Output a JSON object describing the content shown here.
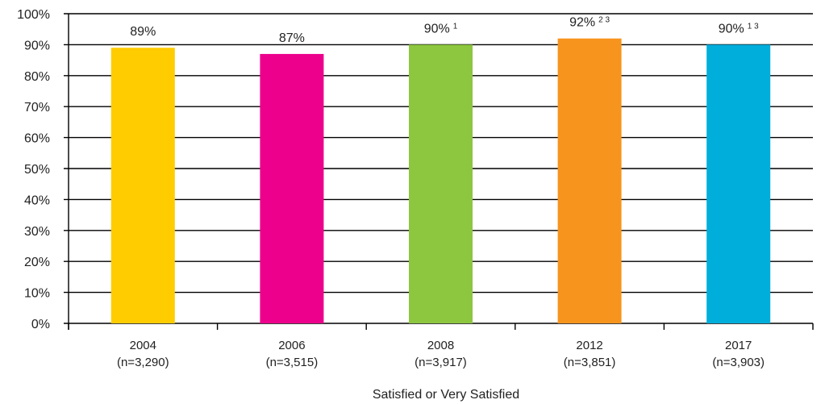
{
  "chart_data": {
    "type": "bar",
    "title": "",
    "xlabel": "Satisfied or Very Satisfied",
    "ylabel": "",
    "ylim": [
      0,
      100
    ],
    "y_tick_values": [
      0,
      10,
      20,
      30,
      40,
      50,
      60,
      70,
      80,
      90,
      100
    ],
    "y_tick_labels": [
      "0%",
      "10%",
      "20%",
      "30%",
      "40%",
      "50%",
      "60%",
      "70%",
      "80%",
      "90%",
      "100%"
    ],
    "grid": true,
    "legend": "none",
    "categories": [
      "2004",
      "2006",
      "2008",
      "2012",
      "2017"
    ],
    "category_sublabels": [
      "(n=3,290)",
      "(n=3,515)",
      "(n=3,917)",
      "(n=3,851)",
      "(n=3,903)"
    ],
    "values": [
      89,
      87,
      90,
      92,
      90
    ],
    "data_labels": [
      "89%",
      "87%",
      "90%",
      "92%",
      "90%"
    ],
    "footnote_marks": [
      "",
      "",
      "1",
      "2 3",
      "1 3"
    ],
    "colors": [
      "#FFCC00",
      "#EC008C",
      "#8DC63F",
      "#F7941D",
      "#00AEDB"
    ]
  }
}
